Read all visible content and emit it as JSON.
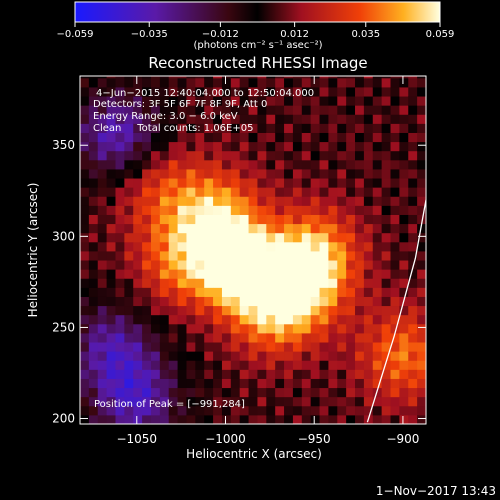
{
  "chart_data": {
    "type": "heatmap",
    "title": "Reconstructed RHESSI Image",
    "xlabel": "Heliocentric X (arcsec)",
    "ylabel": "Heliocentric Y (arcsec)",
    "xlim": [
      -1082,
      -887
    ],
    "ylim": [
      197,
      388
    ],
    "xticks": [
      -1050,
      -1000,
      -950,
      -900
    ],
    "xtick_labels": [
      "−1050",
      "−1000",
      "−950",
      "−900"
    ],
    "yticks": [
      200,
      250,
      300,
      350
    ],
    "ytick_labels": [
      "200",
      "250",
      "300",
      "350"
    ],
    "colorbar": {
      "min": -0.059,
      "max": 0.059,
      "ticks": [
        -0.059,
        -0.035,
        -0.012,
        0.012,
        0.035,
        0.059
      ],
      "tick_labels": [
        "−0.059",
        "−0.035",
        "−0.012",
        "0.012",
        "0.035",
        "0.059"
      ],
      "units": "(photons cm⁻² s⁻¹ asec⁻²)"
    },
    "annotations": [
      "4−Jun−2015 12:40:04.000 to 12:50:04.000",
      "Detectors: 3F 5F 6F 7F 8F 9F, Att 0",
      "Energy Range: 3.0 − 6.0 keV",
      "Clean     Total counts: 1.06E+05"
    ],
    "peak_label": "Position of Peak = [−991,284]",
    "peak": [
      -991,
      284
    ],
    "features": [
      {
        "x": -992,
        "y": 283,
        "value": 0.059
      },
      {
        "x": -1005,
        "y": 310,
        "value": 0.045
      },
      {
        "x": -1025,
        "y": 285,
        "value": 0.032
      },
      {
        "x": -960,
        "y": 272,
        "value": 0.035
      },
      {
        "x": -950,
        "y": 290,
        "value": 0.04
      },
      {
        "x": -975,
        "y": 260,
        "value": 0.034
      },
      {
        "x": -1040,
        "y": 330,
        "value": 0.025
      },
      {
        "x": -900,
        "y": 235,
        "value": 0.032
      },
      {
        "x": -1060,
        "y": 355,
        "value": -0.045
      },
      {
        "x": -1065,
        "y": 240,
        "value": -0.035
      },
      {
        "x": -1050,
        "y": 210,
        "value": -0.04
      }
    ],
    "limb_curve": [
      [
        -920,
        198
      ],
      [
        -905,
        245
      ],
      [
        -893,
        288
      ],
      [
        -887,
        320
      ]
    ]
  },
  "footer": {
    "timestamp": "1−Nov−2017 13:43"
  }
}
